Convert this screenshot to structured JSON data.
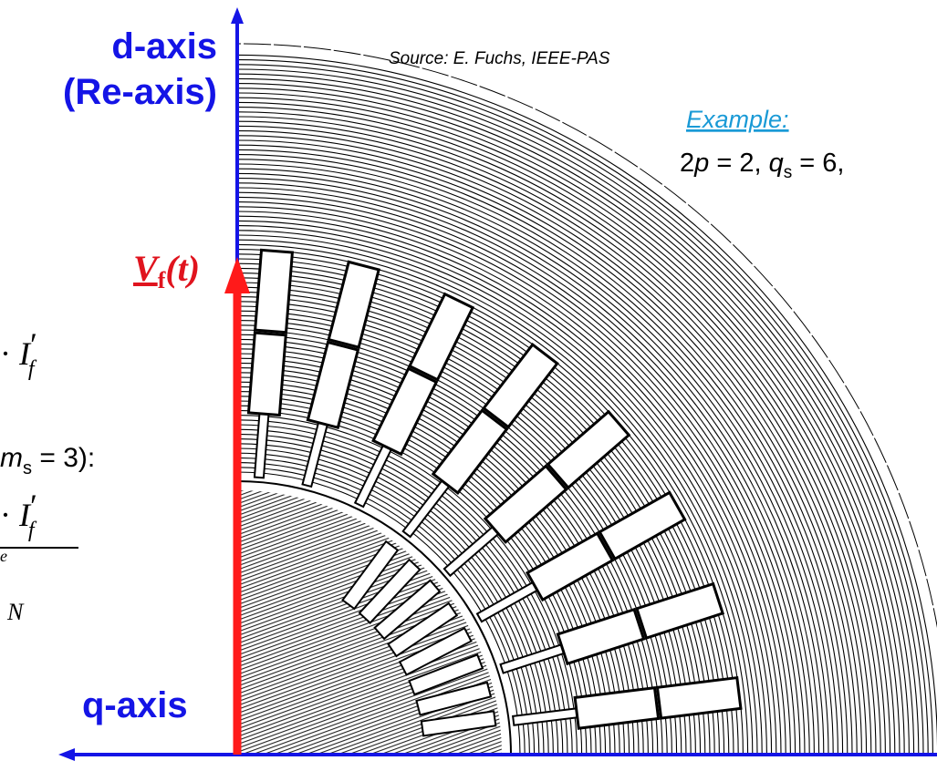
{
  "slide": {
    "d_axis": "d-axis",
    "re_axis": "(Re-axis)",
    "source": "Source: E. Fuchs, IEEE-PAS",
    "example_label": "Example:",
    "example": {
      "pre": "2",
      "p": "p",
      "mid": " = 2, ",
      "q": "q",
      "sub": "s",
      "post": " = 6,"
    },
    "voltage": {
      "letter": "V",
      "sub": "f",
      "arg": "(t)"
    },
    "formula1": {
      "dot": "· ",
      "sym": "I",
      "prime": "′",
      "sub": "f"
    },
    "phase_note": {
      "sym": "m",
      "sub": "s",
      "rest": " = 3):"
    },
    "formula2": {
      "dot": "· ",
      "sym": "I",
      "prime": "′",
      "sub": "f",
      "frag_e": "e",
      "frag_n": "N"
    },
    "q_axis": "q-axis"
  }
}
